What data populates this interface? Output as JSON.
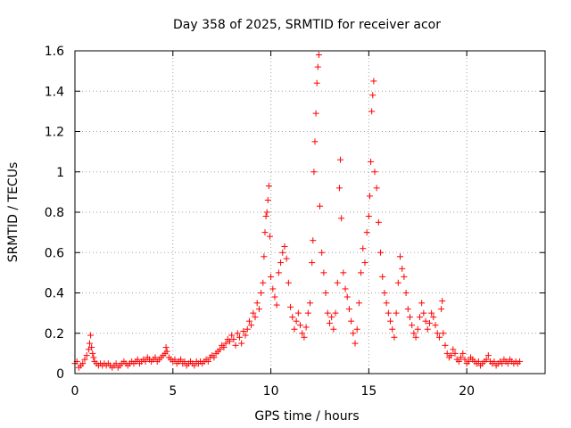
{
  "chart_data": {
    "type": "scatter",
    "title": "Day 358 of 2025, SRMTID for receiver acor",
    "xlabel": "GPS time / hours",
    "ylabel": "SRMTID / TECUs",
    "xlim": [
      0,
      24
    ],
    "ylim": [
      0,
      1.6
    ],
    "xticks": [
      0,
      5,
      10,
      15,
      20
    ],
    "xtick_labels": [
      "0",
      "5",
      "10",
      "15",
      "20"
    ],
    "yticks": [
      0,
      0.2,
      0.4,
      0.6,
      0.8,
      1,
      1.2,
      1.4,
      1.6
    ],
    "ytick_labels": [
      "0",
      "0.2",
      "0.4",
      "0.6",
      "0.8",
      "1",
      "1.2",
      "1.4",
      "1.6"
    ],
    "grid": true,
    "marker": "+",
    "color": "#ff0000",
    "series": [
      {
        "name": "SRMTID",
        "points": [
          [
            0.0,
            0.05
          ],
          [
            0.1,
            0.06
          ],
          [
            0.2,
            0.03
          ],
          [
            0.3,
            0.04
          ],
          [
            0.4,
            0.05
          ],
          [
            0.5,
            0.07
          ],
          [
            0.6,
            0.09
          ],
          [
            0.7,
            0.12
          ],
          [
            0.75,
            0.15
          ],
          [
            0.8,
            0.19
          ],
          [
            0.85,
            0.13
          ],
          [
            0.9,
            0.1
          ],
          [
            0.95,
            0.08
          ],
          [
            1.0,
            0.06
          ],
          [
            1.1,
            0.05
          ],
          [
            1.2,
            0.04
          ],
          [
            1.3,
            0.05
          ],
          [
            1.4,
            0.04
          ],
          [
            1.5,
            0.05
          ],
          [
            1.6,
            0.04
          ],
          [
            1.7,
            0.05
          ],
          [
            1.8,
            0.04
          ],
          [
            1.9,
            0.03
          ],
          [
            2.0,
            0.04
          ],
          [
            2.1,
            0.05
          ],
          [
            2.2,
            0.03
          ],
          [
            2.3,
            0.04
          ],
          [
            2.4,
            0.05
          ],
          [
            2.5,
            0.06
          ],
          [
            2.6,
            0.05
          ],
          [
            2.7,
            0.04
          ],
          [
            2.8,
            0.05
          ],
          [
            2.9,
            0.06
          ],
          [
            3.0,
            0.05
          ],
          [
            3.1,
            0.06
          ],
          [
            3.2,
            0.07
          ],
          [
            3.3,
            0.05
          ],
          [
            3.4,
            0.06
          ],
          [
            3.5,
            0.07
          ],
          [
            3.6,
            0.06
          ],
          [
            3.7,
            0.08
          ],
          [
            3.8,
            0.07
          ],
          [
            3.9,
            0.06
          ],
          [
            4.0,
            0.07
          ],
          [
            4.1,
            0.08
          ],
          [
            4.2,
            0.06
          ],
          [
            4.3,
            0.07
          ],
          [
            4.4,
            0.08
          ],
          [
            4.5,
            0.09
          ],
          [
            4.6,
            0.1
          ],
          [
            4.65,
            0.13
          ],
          [
            4.7,
            0.11
          ],
          [
            4.8,
            0.08
          ],
          [
            4.9,
            0.07
          ],
          [
            5.0,
            0.06
          ],
          [
            5.1,
            0.07
          ],
          [
            5.2,
            0.05
          ],
          [
            5.3,
            0.06
          ],
          [
            5.4,
            0.07
          ],
          [
            5.5,
            0.05
          ],
          [
            5.6,
            0.06
          ],
          [
            5.7,
            0.04
          ],
          [
            5.8,
            0.05
          ],
          [
            5.9,
            0.06
          ],
          [
            6.0,
            0.05
          ],
          [
            6.1,
            0.04
          ],
          [
            6.2,
            0.06
          ],
          [
            6.3,
            0.05
          ],
          [
            6.4,
            0.06
          ],
          [
            6.5,
            0.05
          ],
          [
            6.6,
            0.06
          ],
          [
            6.7,
            0.07
          ],
          [
            6.8,
            0.06
          ],
          [
            6.9,
            0.08
          ],
          [
            7.0,
            0.09
          ],
          [
            7.1,
            0.08
          ],
          [
            7.2,
            0.1
          ],
          [
            7.3,
            0.11
          ],
          [
            7.4,
            0.12
          ],
          [
            7.5,
            0.14
          ],
          [
            7.6,
            0.13
          ],
          [
            7.7,
            0.15
          ],
          [
            7.8,
            0.17
          ],
          [
            7.9,
            0.16
          ],
          [
            8.0,
            0.19
          ],
          [
            8.1,
            0.17
          ],
          [
            8.2,
            0.14
          ],
          [
            8.3,
            0.2
          ],
          [
            8.4,
            0.18
          ],
          [
            8.5,
            0.15
          ],
          [
            8.6,
            0.21
          ],
          [
            8.7,
            0.19
          ],
          [
            8.8,
            0.22
          ],
          [
            8.9,
            0.26
          ],
          [
            9.0,
            0.24
          ],
          [
            9.1,
            0.3
          ],
          [
            9.2,
            0.28
          ],
          [
            9.3,
            0.35
          ],
          [
            9.4,
            0.32
          ],
          [
            9.5,
            0.4
          ],
          [
            9.6,
            0.45
          ],
          [
            9.65,
            0.58
          ],
          [
            9.7,
            0.7
          ],
          [
            9.75,
            0.78
          ],
          [
            9.8,
            0.8
          ],
          [
            9.85,
            0.86
          ],
          [
            9.9,
            0.93
          ],
          [
            9.95,
            0.68
          ],
          [
            10.0,
            0.48
          ],
          [
            10.1,
            0.42
          ],
          [
            10.2,
            0.38
          ],
          [
            10.3,
            0.34
          ],
          [
            10.4,
            0.5
          ],
          [
            10.5,
            0.55
          ],
          [
            10.6,
            0.6
          ],
          [
            10.7,
            0.63
          ],
          [
            10.8,
            0.57
          ],
          [
            10.9,
            0.45
          ],
          [
            11.0,
            0.33
          ],
          [
            11.1,
            0.28
          ],
          [
            11.2,
            0.22
          ],
          [
            11.3,
            0.26
          ],
          [
            11.4,
            0.3
          ],
          [
            11.5,
            0.24
          ],
          [
            11.6,
            0.2
          ],
          [
            11.7,
            0.18
          ],
          [
            11.8,
            0.23
          ],
          [
            11.9,
            0.3
          ],
          [
            12.0,
            0.35
          ],
          [
            12.1,
            0.55
          ],
          [
            12.15,
            0.66
          ],
          [
            12.2,
            1.0
          ],
          [
            12.25,
            1.15
          ],
          [
            12.3,
            1.29
          ],
          [
            12.35,
            1.44
          ],
          [
            12.4,
            1.52
          ],
          [
            12.45,
            1.58
          ],
          [
            12.5,
            0.83
          ],
          [
            12.6,
            0.6
          ],
          [
            12.7,
            0.5
          ],
          [
            12.8,
            0.4
          ],
          [
            12.9,
            0.3
          ],
          [
            13.0,
            0.25
          ],
          [
            13.1,
            0.28
          ],
          [
            13.2,
            0.22
          ],
          [
            13.3,
            0.3
          ],
          [
            13.4,
            0.45
          ],
          [
            13.5,
            0.92
          ],
          [
            13.55,
            1.06
          ],
          [
            13.6,
            0.77
          ],
          [
            13.7,
            0.5
          ],
          [
            13.8,
            0.42
          ],
          [
            13.9,
            0.38
          ],
          [
            14.0,
            0.32
          ],
          [
            14.1,
            0.26
          ],
          [
            14.2,
            0.2
          ],
          [
            14.3,
            0.15
          ],
          [
            14.4,
            0.22
          ],
          [
            14.5,
            0.35
          ],
          [
            14.6,
            0.5
          ],
          [
            14.7,
            0.62
          ],
          [
            14.8,
            0.55
          ],
          [
            14.9,
            0.7
          ],
          [
            15.0,
            0.78
          ],
          [
            15.05,
            0.88
          ],
          [
            15.1,
            1.05
          ],
          [
            15.15,
            1.3
          ],
          [
            15.2,
            1.38
          ],
          [
            15.25,
            1.45
          ],
          [
            15.3,
            1.0
          ],
          [
            15.4,
            0.92
          ],
          [
            15.5,
            0.75
          ],
          [
            15.6,
            0.6
          ],
          [
            15.7,
            0.48
          ],
          [
            15.8,
            0.4
          ],
          [
            15.9,
            0.35
          ],
          [
            16.0,
            0.3
          ],
          [
            16.1,
            0.26
          ],
          [
            16.2,
            0.22
          ],
          [
            16.3,
            0.18
          ],
          [
            16.4,
            0.3
          ],
          [
            16.5,
            0.45
          ],
          [
            16.6,
            0.58
          ],
          [
            16.7,
            0.52
          ],
          [
            16.8,
            0.48
          ],
          [
            16.9,
            0.4
          ],
          [
            17.0,
            0.32
          ],
          [
            17.1,
            0.28
          ],
          [
            17.2,
            0.24
          ],
          [
            17.3,
            0.2
          ],
          [
            17.4,
            0.18
          ],
          [
            17.5,
            0.22
          ],
          [
            17.6,
            0.28
          ],
          [
            17.7,
            0.35
          ],
          [
            17.8,
            0.3
          ],
          [
            17.9,
            0.26
          ],
          [
            18.0,
            0.22
          ],
          [
            18.1,
            0.25
          ],
          [
            18.2,
            0.3
          ],
          [
            18.3,
            0.28
          ],
          [
            18.4,
            0.24
          ],
          [
            18.5,
            0.2
          ],
          [
            18.6,
            0.18
          ],
          [
            18.7,
            0.32
          ],
          [
            18.75,
            0.36
          ],
          [
            18.8,
            0.2
          ],
          [
            18.9,
            0.14
          ],
          [
            19.0,
            0.1
          ],
          [
            19.1,
            0.08
          ],
          [
            19.2,
            0.09
          ],
          [
            19.3,
            0.12
          ],
          [
            19.4,
            0.1
          ],
          [
            19.5,
            0.07
          ],
          [
            19.6,
            0.06
          ],
          [
            19.7,
            0.08
          ],
          [
            19.8,
            0.1
          ],
          [
            19.9,
            0.07
          ],
          [
            20.0,
            0.05
          ],
          [
            20.1,
            0.06
          ],
          [
            20.2,
            0.08
          ],
          [
            20.3,
            0.07
          ],
          [
            20.4,
            0.06
          ],
          [
            20.5,
            0.05
          ],
          [
            20.6,
            0.06
          ],
          [
            20.7,
            0.04
          ],
          [
            20.8,
            0.05
          ],
          [
            20.9,
            0.06
          ],
          [
            21.0,
            0.07
          ],
          [
            21.1,
            0.09
          ],
          [
            21.2,
            0.06
          ],
          [
            21.3,
            0.05
          ],
          [
            21.4,
            0.06
          ],
          [
            21.5,
            0.04
          ],
          [
            21.6,
            0.05
          ],
          [
            21.7,
            0.06
          ],
          [
            21.8,
            0.05
          ],
          [
            21.9,
            0.07
          ],
          [
            22.0,
            0.06
          ],
          [
            22.1,
            0.05
          ],
          [
            22.2,
            0.07
          ],
          [
            22.3,
            0.06
          ],
          [
            22.4,
            0.05
          ],
          [
            22.5,
            0.06
          ],
          [
            22.6,
            0.05
          ],
          [
            22.7,
            0.06
          ]
        ]
      }
    ]
  }
}
